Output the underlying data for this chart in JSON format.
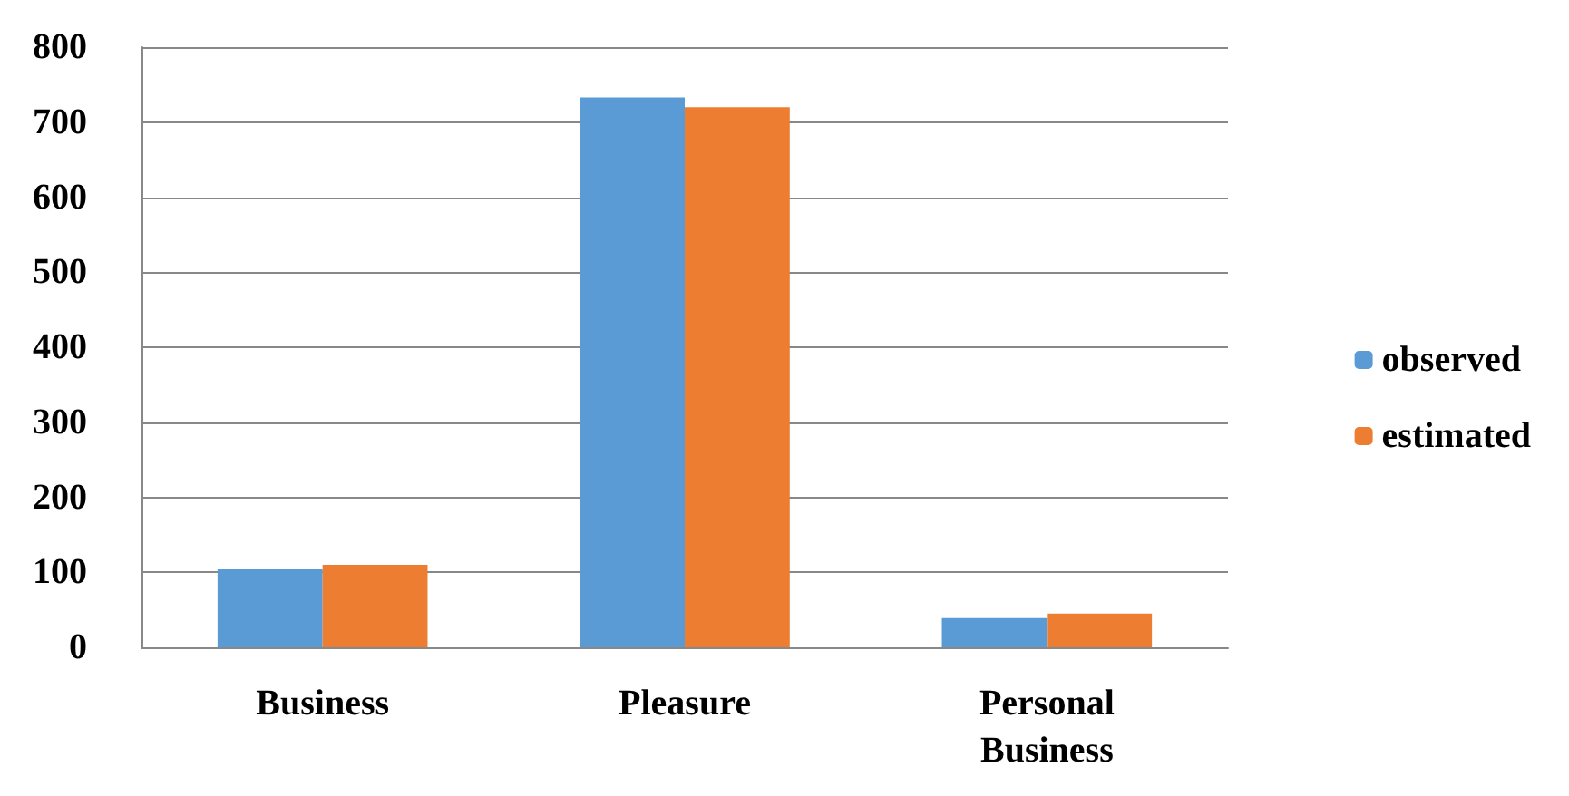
{
  "chart_data": {
    "type": "bar",
    "categories": [
      "Business",
      "Pleasure",
      "Personal Business"
    ],
    "series": [
      {
        "name": "observed",
        "color": "#5b9bd5",
        "values": [
          104,
          733,
          39
        ]
      },
      {
        "name": "estimated",
        "color": "#ed7d31",
        "values": [
          110,
          720,
          45
        ]
      }
    ],
    "ylim": [
      0,
      800
    ],
    "yticks": [
      0,
      100,
      200,
      300,
      400,
      500,
      600,
      700,
      800
    ],
    "grid": "y",
    "legend": "right"
  }
}
